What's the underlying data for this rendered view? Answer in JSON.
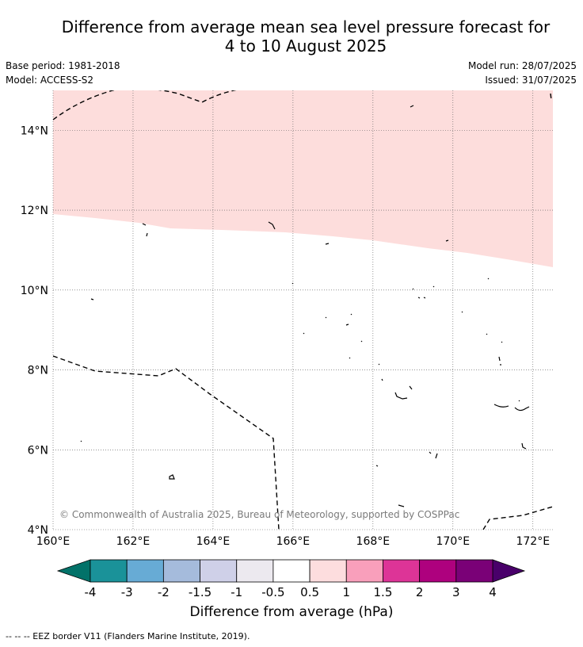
{
  "title_line1": "Difference from average mean sea level pressure forecast for",
  "title_line2": "4 to 10 August 2025",
  "base_period": "Base period: 1981-2018",
  "model": "Model: ACCESS-S2",
  "model_run": "Model run: 28/07/2025",
  "issued": "Issued: 31/07/2025",
  "map": {
    "lon_range": [
      160,
      172.5
    ],
    "lat_range": [
      4,
      15
    ],
    "lon_ticks": [
      "160°E",
      "162°E",
      "164°E",
      "166°E",
      "168°E",
      "170°E",
      "172°E"
    ],
    "lat_ticks": [
      "4°N",
      "6°N",
      "8°N",
      "10°N",
      "12°N",
      "14°N"
    ],
    "gridlines": true,
    "shaded_anomaly_colour": "#fddddc",
    "copyright": "© Commonwealth of Australia 2025, Bureau of Meteorology, supported by COSPPac"
  },
  "colorbar": {
    "ticks": [
      "-4",
      "-3",
      "-2",
      "-1.5",
      "-1",
      "-0.5",
      "0.5",
      "1",
      "1.5",
      "2",
      "3",
      "4"
    ],
    "colors": [
      "#1a9299",
      "#67abd5",
      "#a5bbdc",
      "#cfd0e8",
      "#ece9ef",
      "#ffffff",
      "#fdddde",
      "#f99fbb",
      "#dd3497",
      "#ae017e",
      "#7a0177"
    ],
    "low_extend_color": "#027269",
    "high_extend_color": "#49006a",
    "label": "Difference from average (hPa)"
  },
  "legend_note": "--  --  -- EEZ border V11 (Flanders Marine Institute, 2019)."
}
